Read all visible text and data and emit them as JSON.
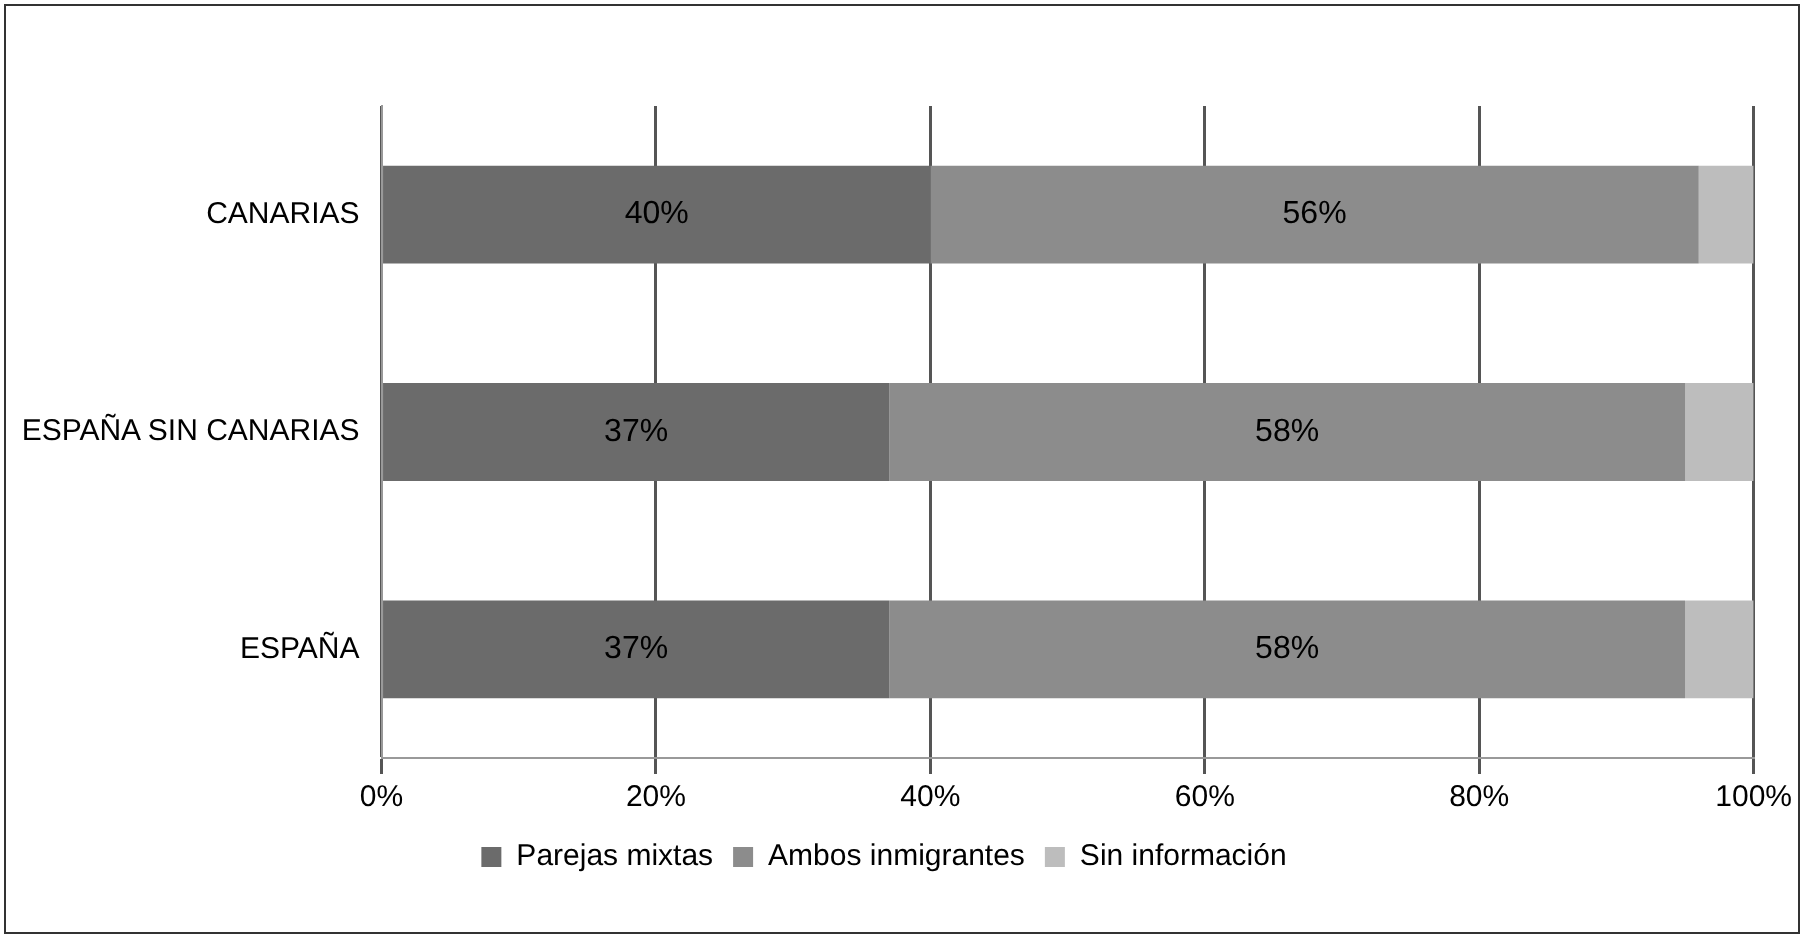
{
  "chart_data": {
    "type": "bar",
    "orientation": "horizontal",
    "stacked": true,
    "categories": [
      "CANARIAS",
      "ESPAÑA SIN CANARIAS",
      "ESPAÑA"
    ],
    "series": [
      {
        "name": "Parejas mixtas",
        "color": "#6b6b6b",
        "values": [
          40,
          37,
          37
        ],
        "value_labels": [
          "40%",
          "37%",
          "37%"
        ]
      },
      {
        "name": "Ambos inmigrantes",
        "color": "#8c8c8c",
        "values": [
          56,
          58,
          58
        ],
        "value_labels": [
          "56%",
          "58%",
          "58%"
        ]
      },
      {
        "name": "Sin información",
        "color": "#bdbdbd",
        "values": [
          4,
          5,
          5
        ],
        "value_labels": [
          null,
          null,
          null
        ]
      }
    ],
    "xlim": [
      0,
      100
    ],
    "xticks": [
      {
        "value": 0,
        "label": "0%"
      },
      {
        "value": 20,
        "label": "20%"
      },
      {
        "value": 40,
        "label": "40%"
      },
      {
        "value": 60,
        "label": "60%"
      },
      {
        "value": 80,
        "label": "80%"
      },
      {
        "value": 100,
        "label": "100%"
      }
    ],
    "grid": "x",
    "legend": "bottom"
  }
}
